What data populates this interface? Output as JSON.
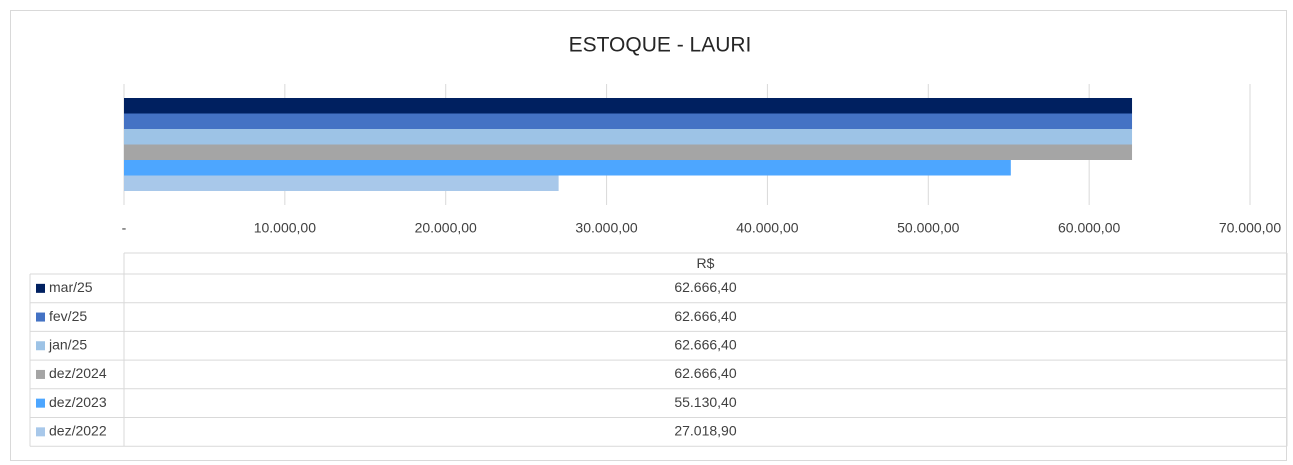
{
  "chart_data": {
    "type": "bar",
    "orientation": "horizontal",
    "title": "ESTOQUE - LAURI",
    "categories": [
      "R$"
    ],
    "series": [
      {
        "name": "mar/25",
        "color": "#002060",
        "values": [
          62666.4
        ],
        "value_labels": [
          "62.666,40"
        ]
      },
      {
        "name": "fev/25",
        "color": "#4472c4",
        "values": [
          62666.4
        ],
        "value_labels": [
          "62.666,40"
        ]
      },
      {
        "name": "jan/25",
        "color": "#9dc3e6",
        "values": [
          62666.4
        ],
        "value_labels": [
          "62.666,40"
        ]
      },
      {
        "name": "dez/2024",
        "color": "#a5a5a5",
        "values": [
          62666.4
        ],
        "value_labels": [
          "62.666,40"
        ]
      },
      {
        "name": "dez/2023",
        "color": "#4da6ff",
        "values": [
          55130.4
        ],
        "value_labels": [
          "55.130,40"
        ]
      },
      {
        "name": "dez/2022",
        "color": "#a8c8ea",
        "values": [
          27018.9
        ],
        "value_labels": [
          "27.018,90"
        ]
      }
    ],
    "xlim": [
      0,
      70000
    ],
    "xticks": [
      {
        "value": 0,
        "label": "-"
      },
      {
        "value": 10000,
        "label": "10.000,00"
      },
      {
        "value": 20000,
        "label": "20.000,00"
      },
      {
        "value": 30000,
        "label": "30.000,00"
      },
      {
        "value": 40000,
        "label": "40.000,00"
      },
      {
        "value": 50000,
        "label": "50.000,00"
      },
      {
        "value": 60000,
        "label": "60.000,00"
      },
      {
        "value": 70000,
        "label": "70.000,00"
      }
    ],
    "grid": true
  }
}
